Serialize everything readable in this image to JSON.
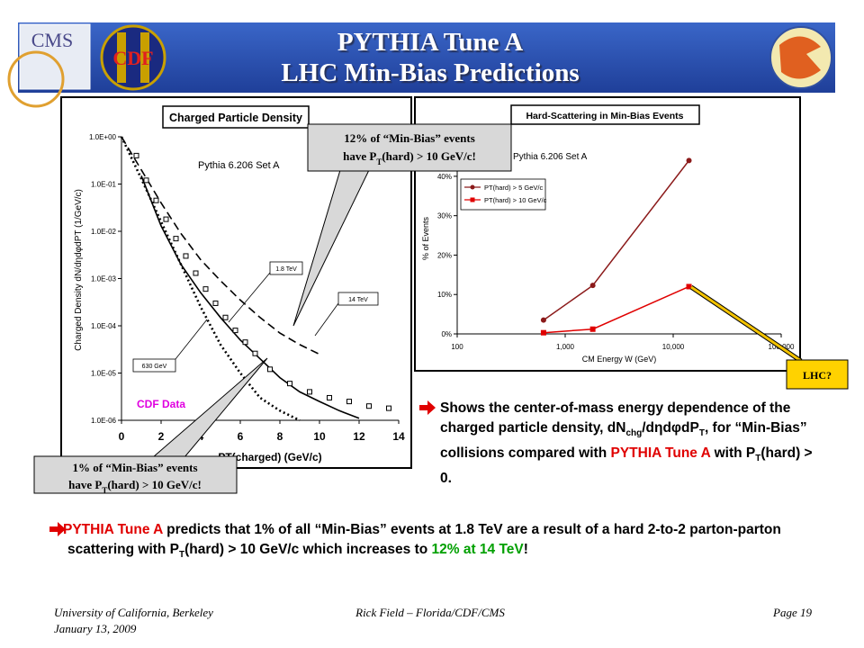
{
  "header": {
    "title": [
      "PYTHIA Tune A",
      "LHC Min-Bias Predictions"
    ],
    "logos": [
      "CMS",
      "CDF"
    ]
  },
  "chart_data": [
    {
      "type": "line",
      "title": "Charged Particle Density",
      "annotation": "Pythia 6.206 Set A",
      "xlabel": "PT(charged) (GeV/c)",
      "ylabel": "Charged Density dN/dηdφdPT (1/GeV/c)",
      "log_y": true,
      "xlim": [
        0,
        14
      ],
      "xticks": [
        0,
        2,
        4,
        6,
        8,
        10,
        12,
        14
      ],
      "ylim": [
        1e-06,
        1
      ],
      "yticks": [
        {
          "value": 1e-06,
          "label": "1.0E-06"
        },
        {
          "value": 1e-05,
          "label": "1.0E-05"
        },
        {
          "value": 0.0001,
          "label": "1.0E-04"
        },
        {
          "value": 0.001,
          "label": "1.0E-03"
        },
        {
          "value": 0.01,
          "label": "1.0E-02"
        },
        {
          "value": 0.1,
          "label": "1.0E-01"
        },
        {
          "value": 1,
          "label": "1.0E+00"
        }
      ],
      "x": [
        0,
        1,
        2,
        3,
        4,
        5,
        6,
        7,
        8,
        9,
        10,
        11,
        12,
        13,
        14
      ],
      "series": [
        {
          "name": "630 GeV",
          "color": "#000000",
          "line_style": "dotted",
          "values": [
            1,
            0.13,
            0.016,
            0.002,
            0.00025,
            4e-05,
            1e-05,
            3e-06,
            1.6e-06,
            1e-06,
            null,
            null,
            null,
            null,
            null
          ]
        },
        {
          "name": "1.8 TeV",
          "color": "#000000",
          "line_style": "solid",
          "values": [
            null,
            0.15,
            0.013,
            0.002,
            0.0005,
            0.00015,
            5e-05,
            2e-05,
            8e-06,
            4e-06,
            2.5e-06,
            1.6e-06,
            1.1e-06,
            null,
            null
          ]
        },
        {
          "name": "14 TeV",
          "color": "#000000",
          "line_style": "dashed",
          "values": [
            1,
            0.2,
            0.04,
            0.009,
            0.0025,
            0.0009,
            0.00035,
            0.00015,
            7e-05,
            4e-05,
            2.5e-05,
            null,
            null,
            null,
            null
          ]
        }
      ],
      "points": {
        "name": "CDF Data",
        "color": "#000000",
        "x": [
          0.75,
          1.25,
          1.75,
          2.25,
          2.75,
          3.25,
          3.75,
          4.25,
          4.75,
          5.25,
          5.75,
          6.25,
          6.75,
          7.5,
          8.5,
          9.5,
          10.5,
          11.5,
          12.5,
          13.5
        ],
        "values": [
          0.4,
          0.12,
          0.045,
          0.018,
          0.007,
          0.003,
          0.0013,
          0.0006,
          0.0003,
          0.00015,
          8e-05,
          4.5e-05,
          2.6e-05,
          1.2e-05,
          6e-06,
          4e-06,
          3e-06,
          2.5e-06,
          2e-06,
          1.8e-06
        ]
      }
    },
    {
      "type": "line",
      "title": "Hard-Scattering in Min-Bias Events",
      "annotation": "Pythia 6.206 Set A",
      "xlabel": "CM Energy W (GeV)",
      "ylabel": "% of Events",
      "log_x": true,
      "xlim": [
        100,
        100000
      ],
      "xticks": [
        100,
        {
          "value": 1000,
          "label": "1,000"
        },
        {
          "value": 10000,
          "label": "10,000"
        },
        {
          "value": 100000,
          "label": "100,000"
        }
      ],
      "ylim": [
        0,
        45
      ],
      "yticks": [
        {
          "value": 0,
          "label": "0%"
        },
        {
          "value": 10,
          "label": "10%"
        },
        {
          "value": 20,
          "label": "20%"
        },
        {
          "value": 30,
          "label": "30%"
        },
        {
          "value": 40,
          "label": "40%"
        }
      ],
      "x": [
        630,
        1800,
        14000
      ],
      "series": [
        {
          "name": "PT(hard) > 5 GeV/c",
          "color": "#8b1a1a",
          "marker": "circle",
          "values": [
            3.5,
            12.3,
            44
          ]
        },
        {
          "name": "PT(hard) > 10 GeV/c",
          "color": "#e00000",
          "marker": "square",
          "values": [
            0.3,
            1.2,
            12
          ]
        }
      ]
    }
  ],
  "callouts": [
    {
      "lines": [
        [
          "12% of “Min-Bias” events"
        ],
        [
          "have P",
          "T",
          "(hard) > 10 GeV/c!"
        ]
      ]
    },
    {
      "lines": [
        [
          "1% of “Min-Bias” events"
        ],
        [
          "have P",
          "T",
          "(hard) > 10 GeV/c!"
        ]
      ]
    },
    {
      "lines": [
        [
          "LHC?"
        ]
      ]
    }
  ],
  "bullets": [
    {
      "parts": [
        {
          "text": "Shows the center-of-mass energy dependence of the charged particle density, dN"
        },
        {
          "text": "chg",
          "style": "sub"
        },
        {
          "text": "/dηdφdP"
        },
        {
          "text": "T",
          "style": "sub"
        },
        {
          "text": ", for “Min-Bias” collisions compared with "
        },
        {
          "text": "PYTHIA Tune A",
          "style": "red"
        },
        {
          "text": " with P"
        },
        {
          "text": "T",
          "style": "sub"
        },
        {
          "text": "(hard) > 0."
        }
      ]
    },
    {
      "parts": [
        {
          "text": "PYTHIA Tune A",
          "style": "red"
        },
        {
          "text": " predicts that 1% of all “Min-Bias” events  at 1.8 TeV are a result of a hard 2-to-2 parton-parton scattering with P"
        },
        {
          "text": "T",
          "style": "sub"
        },
        {
          "text": "(hard) > 10 GeV/c which increases to "
        },
        {
          "text": "12% at 14 TeV",
          "style": "green"
        },
        {
          "text": "!"
        }
      ]
    }
  ],
  "footer": {
    "left": [
      "University of California, Berkeley",
      "January 13, 2009"
    ],
    "center": "Rick Field – Florida/CDF/CMS",
    "right": "Page 19"
  }
}
